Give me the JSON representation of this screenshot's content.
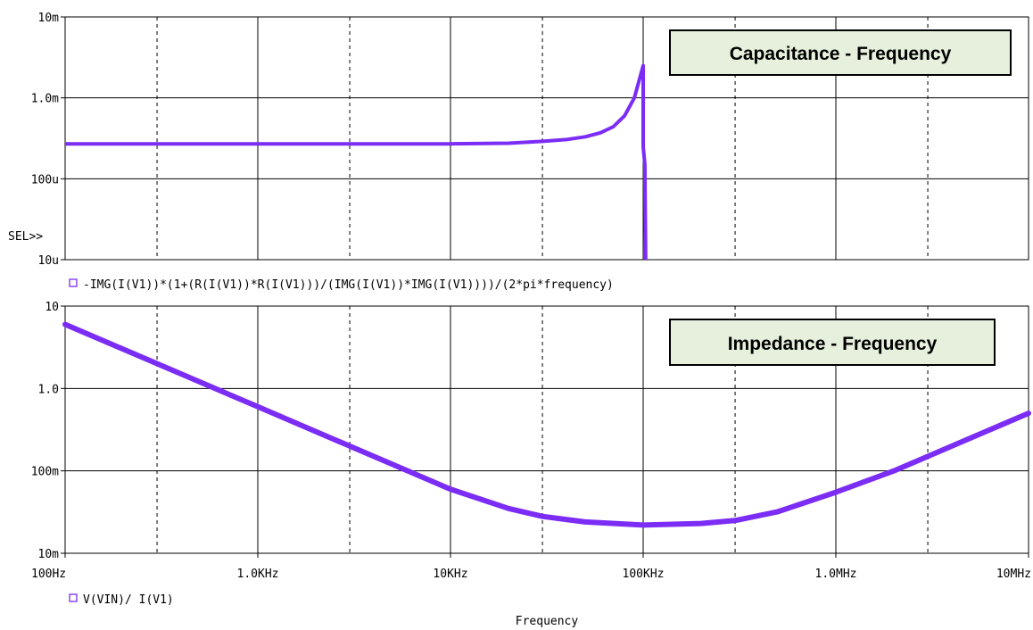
{
  "chart_data": [
    {
      "type": "line",
      "title": "Capacitance - Frequency",
      "x_scale": "log",
      "y_scale": "log",
      "xlim": [
        "100Hz",
        "10MHz"
      ],
      "ylim": [
        "10u",
        "10m"
      ],
      "y_ticks": [
        "10m",
        "1.0m",
        "100u",
        "10u"
      ],
      "selection_marker": "SEL>>",
      "grid": true,
      "series": [
        {
          "name": "-IMG(I(V1))*(1+(R(I(V1))*R(I(V1)))/(IMG(I(V1))*IMG(I(V1))))/(2*pi*frequency)",
          "color": "#7b2cf5",
          "x_hz": [
            100,
            1000,
            10000,
            20000,
            30000,
            40000,
            50000,
            60000,
            70000,
            80000,
            90000,
            100000,
            100000,
            102000,
            103000
          ],
          "y": [
            "270u",
            "270u",
            "270u",
            "275u",
            "290u",
            "305u",
            "330u",
            "370u",
            "440u",
            "600u",
            "1.0m",
            "2.5m",
            "250u",
            "150u",
            "10u"
          ]
        }
      ]
    },
    {
      "type": "line",
      "title": "Impedance - Frequency",
      "x_scale": "log",
      "y_scale": "log",
      "xlim": [
        "100Hz",
        "10MHz"
      ],
      "ylim": [
        "10m",
        "10"
      ],
      "y_ticks": [
        "10",
        "1.0",
        "100m",
        "10m"
      ],
      "x_ticks": [
        "100Hz",
        "1.0KHz",
        "10KHz",
        "100KHz",
        "1.0MHz",
        "10MHz"
      ],
      "xlabel": "Frequency",
      "grid": true,
      "series": [
        {
          "name": "V(VIN)/ I(V1)",
          "color": "#7b2cf5",
          "x_hz": [
            100,
            200,
            500,
            1000,
            2000,
            5000,
            10000,
            20000,
            30000,
            50000,
            100000,
            200000,
            300000,
            500000,
            1000000,
            2000000,
            5000000,
            10000000
          ],
          "y": [
            "6",
            "3",
            "1.2",
            "0.6",
            "0.3",
            "0.12",
            "0.06",
            "0.035",
            "0.028",
            "0.024",
            "0.022",
            "0.023",
            "0.025",
            "0.032",
            "0.055",
            "0.1",
            "0.25",
            "0.5"
          ]
        }
      ]
    }
  ]
}
